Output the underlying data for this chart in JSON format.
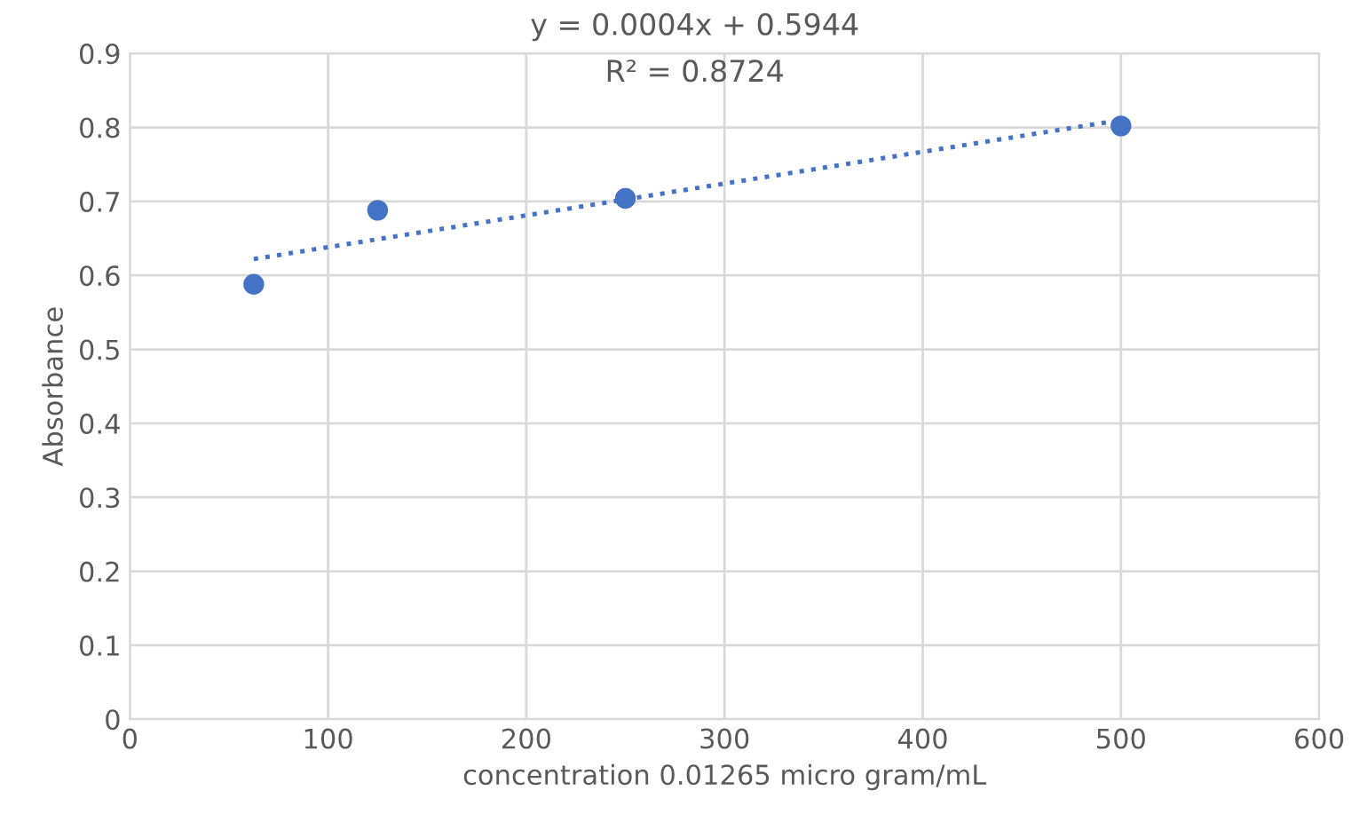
{
  "chart_data": {
    "type": "scatter",
    "xlabel": "concentration 0.01265 micro gram/mL",
    "ylabel": "Absorbance",
    "series": [
      {
        "color": "#4472c4",
        "x": [
          62.5,
          125,
          250,
          500
        ],
        "values": [
          0.588,
          0.688,
          0.704,
          0.802
        ],
        "marker": "circle"
      },
      {
        "type": "line",
        "color": "#4472c4",
        "x": [
          62.5,
          500
        ],
        "values": [
          0.622,
          0.81
        ],
        "line_style": "dotted",
        "marker": "none"
      }
    ],
    "annotations": [
      "y = 0.0004x + 0.5944",
      "R² = 0.8724"
    ],
    "xlim": [
      0,
      600
    ],
    "xticks": [
      0,
      100,
      200,
      300,
      400,
      500,
      600
    ],
    "ylim": [
      0,
      0.9
    ],
    "yticks": [
      0,
      0.1,
      0.2,
      0.3,
      0.4,
      0.5,
      0.6,
      0.7,
      0.8,
      0.9
    ],
    "grid": true,
    "legend": false
  }
}
